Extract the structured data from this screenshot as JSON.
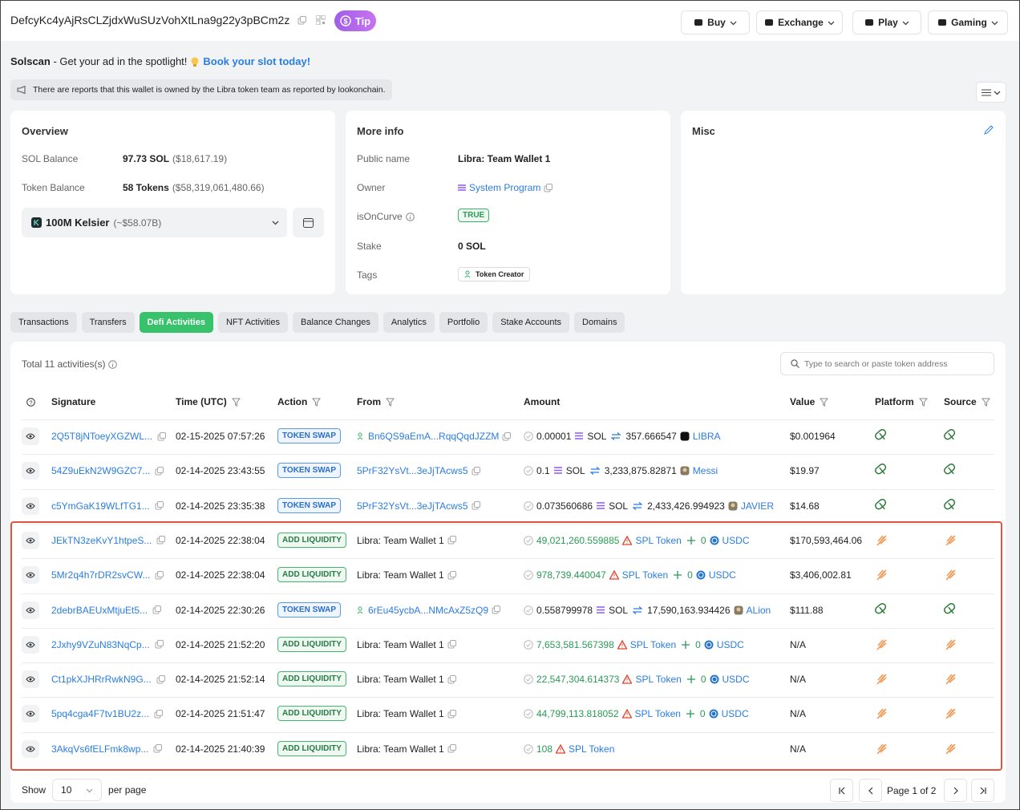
{
  "header": {
    "address": "DefcyKc4yAjRsCLZjdxWuSUzVohXtLna9g22y3pBCm2z",
    "tip": "Tip",
    "nav": [
      "Buy",
      "Exchange",
      "Play",
      "Gaming"
    ]
  },
  "ad": {
    "brand": "Solscan",
    "text": " - Get your ad in the spotlight!",
    "link": "Book your slot today!"
  },
  "notice": "There are reports that this wallet is owned by the Libra token team as reported by lookonchain.",
  "overview": {
    "title": "Overview",
    "rows": [
      {
        "label": "SOL Balance",
        "value": "97.73 SOL",
        "note": "($18,617.19)"
      },
      {
        "label": "Token Balance",
        "value": "58 Tokens",
        "note": "($58,319,061,480.66)"
      }
    ],
    "token": {
      "name": "100M Kelsier",
      "note": "(~$58.07B)"
    }
  },
  "more_info": {
    "title": "More info",
    "rows": [
      {
        "label": "Public name",
        "value": "Libra: Team Wallet 1"
      },
      {
        "label": "Owner",
        "value": "System Program"
      },
      {
        "label": "isOnCurve",
        "value": "TRUE"
      },
      {
        "label": "Stake",
        "value": "0 SOL"
      },
      {
        "label": "Tags",
        "value": "Token Creator"
      }
    ]
  },
  "misc": {
    "title": "Misc"
  },
  "tabs": {
    "items": [
      "Transactions",
      "Transfers",
      "Defi Activities",
      "NFT Activities",
      "Balance Changes",
      "Analytics",
      "Portfolio",
      "Stake Accounts",
      "Domains"
    ],
    "active": 2
  },
  "table": {
    "total": "Total 11 activities(s)",
    "search_placeholder": "Type to search or paste token address",
    "columns": [
      "Signature",
      "Time (UTC)",
      "Action",
      "From",
      "Amount",
      "Value",
      "Platform",
      "Source"
    ],
    "rows": [
      {
        "signature": "2Q5T8jNToeyXGZWL...",
        "time": "02-15-2025 07:57:26",
        "action": "TOKEN SWAP",
        "from": "Bn6QS9aEmA...RqqQqdJZZM",
        "amount": {
          "in": "0.00001",
          "in_token": "SOL",
          "out": "357.666547",
          "out_token": "LIBRA"
        },
        "value": "$0.001964"
      },
      {
        "signature": "54Z9uEkN2W9GZC7...",
        "time": "02-14-2025 23:43:55",
        "action": "TOKEN SWAP",
        "from": "5PrF32YsVt...3eJjTAcws5",
        "amount": {
          "in": "0.1",
          "in_token": "SOL",
          "out": "3,233,875.82871",
          "out_token": "Messi"
        },
        "value": "$19.97"
      },
      {
        "signature": "c5YmGaK19WLfTG1...",
        "time": "02-14-2025 23:35:38",
        "action": "TOKEN SWAP",
        "from": "5PrF32YsVt...3eJjTAcws5",
        "amount": {
          "in": "0.073560686",
          "in_token": "SOL",
          "out": "2,433,426.994923",
          "out_token": "JAVIER"
        },
        "value": "$14.68"
      },
      {
        "signature": "JEkTN3zeKvY1htpeS...",
        "time": "02-14-2025 22:38:04",
        "action": "ADD LIQUIDITY",
        "from": "Libra: Team Wallet 1",
        "amount": {
          "in": "49,021,260.559885",
          "in_token": "SPL Token",
          "out": "0",
          "out_token": "USDC"
        },
        "value": "$170,593,464.06"
      },
      {
        "signature": "5Mr2q4h7rDR2svCW...",
        "time": "02-14-2025 22:38:04",
        "action": "ADD LIQUIDITY",
        "from": "Libra: Team Wallet 1",
        "amount": {
          "in": "978,739.440047",
          "in_token": "SPL Token",
          "out": "0",
          "out_token": "USDC"
        },
        "value": "$3,406,002.81"
      },
      {
        "signature": "2debrBAEUxMtjuEt5...",
        "time": "02-14-2025 22:30:26",
        "action": "TOKEN SWAP",
        "from": "6rEu45ycbA...NMcAxZ5zQ9",
        "amount": {
          "in": "0.558799978",
          "in_token": "SOL",
          "out": "17,590,163.934426",
          "out_token": "ALion"
        },
        "value": "$111.88"
      },
      {
        "signature": "2Jxhy9VZuN83NqCp...",
        "time": "02-14-2025 21:52:20",
        "action": "ADD LIQUIDITY",
        "from": "Libra: Team Wallet 1",
        "amount": {
          "in": "7,653,581.567398",
          "in_token": "SPL Token",
          "out": "0",
          "out_token": "USDC"
        },
        "value": "N/A"
      },
      {
        "signature": "Ct1pkXJHRrRwkN9G...",
        "time": "02-14-2025 21:52:14",
        "action": "ADD LIQUIDITY",
        "from": "Libra: Team Wallet 1",
        "amount": {
          "in": "22,547,304.614373",
          "in_token": "SPL Token",
          "out": "0",
          "out_token": "USDC"
        },
        "value": "N/A"
      },
      {
        "signature": "5pq4cga4F7tv1BU2z...",
        "time": "02-14-2025 21:51:47",
        "action": "ADD LIQUIDITY",
        "from": "Libra: Team Wallet 1",
        "amount": {
          "in": "44,799,113.818052",
          "in_token": "SPL Token",
          "out": "0",
          "out_token": "USDC"
        },
        "value": "N/A"
      },
      {
        "signature": "3AkqVs6fELFmk8wp...",
        "time": "02-14-2025 21:40:39",
        "action": "ADD LIQUIDITY",
        "from": "Libra: Team Wallet 1",
        "amount": {
          "in": "108",
          "in_token": "SPL Token"
        },
        "value": "N/A"
      }
    ]
  },
  "pagination": {
    "show": "Show",
    "per_page_value": "10",
    "per_page": "per page",
    "page": "Page 1 of 2"
  }
}
